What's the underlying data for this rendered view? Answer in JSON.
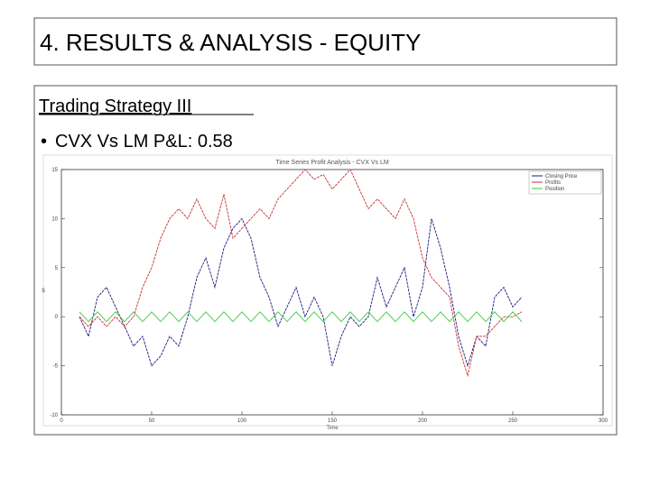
{
  "title": "4. RESULTS & ANALYSIS - EQUITY",
  "heading": "Trading Strategy III",
  "bullet": "CVX Vs LM P&L: 0.58",
  "chart_data": {
    "type": "line",
    "title": "Time Series Profit Analysis - CVX Vs LM",
    "x_label": "Time",
    "y_label": "$",
    "x": [
      10,
      15,
      20,
      25,
      30,
      35,
      40,
      45,
      50,
      55,
      60,
      65,
      70,
      75,
      80,
      85,
      90,
      95,
      100,
      105,
      110,
      115,
      120,
      125,
      130,
      135,
      140,
      145,
      150,
      155,
      160,
      165,
      170,
      175,
      180,
      185,
      190,
      195,
      200,
      205,
      210,
      215,
      220,
      225,
      230,
      235,
      240,
      245,
      250,
      255
    ],
    "series": [
      {
        "name": "Closing Price",
        "color": "#1a1a7a",
        "values": [
          0,
          -2,
          2,
          3,
          1,
          -1,
          -3,
          -2,
          -5,
          -4,
          -2,
          -3,
          0,
          4,
          6,
          3,
          7,
          9,
          10,
          8,
          4,
          2,
          -1,
          1,
          3,
          0,
          2,
          0,
          -5,
          -2,
          0,
          -1,
          0,
          4,
          1,
          3,
          5,
          0,
          3,
          10,
          7,
          3,
          -2,
          -5,
          -2,
          -3,
          2,
          3,
          1,
          2
        ]
      },
      {
        "name": "Profits",
        "color": "#c83232",
        "values": [
          0,
          -1,
          0,
          -1,
          0,
          -1,
          0,
          3,
          5,
          8,
          10,
          11,
          10,
          12,
          10,
          9,
          12.5,
          8,
          9,
          10,
          11,
          10,
          12,
          13,
          14,
          15,
          14,
          14.5,
          13,
          14,
          15,
          13,
          11,
          12,
          11,
          10,
          12,
          10,
          6,
          4,
          3,
          2,
          -3,
          -6,
          -2,
          -2,
          -1,
          0,
          0,
          0.5
        ]
      },
      {
        "name": "Position",
        "color": "#3cc83c",
        "values": [
          0.5,
          -0.5,
          0.5,
          -0.5,
          0.5,
          -0.5,
          0.5,
          -0.5,
          0.5,
          -0.5,
          0.5,
          -0.5,
          0.5,
          -0.5,
          0.5,
          -0.5,
          0.5,
          -0.5,
          0.5,
          -0.5,
          0.5,
          -0.5,
          0.5,
          -0.5,
          0.5,
          -0.5,
          0.5,
          -0.5,
          0.5,
          -0.5,
          0.5,
          -0.5,
          0.5,
          -0.5,
          0.5,
          -0.5,
          0.5,
          -0.5,
          0.5,
          -0.5,
          0.5,
          -0.5,
          0.5,
          -0.5,
          0.5,
          -0.5,
          0.5,
          -0.5,
          0.5,
          -0.5
        ]
      }
    ],
    "xlim": [
      0,
      300
    ],
    "xticks": [
      0,
      50,
      100,
      150,
      200,
      250,
      300
    ],
    "ylim": [
      -10,
      15
    ],
    "yticks": [
      -10,
      -5,
      0,
      5,
      10,
      15
    ],
    "legend": "upper right"
  }
}
